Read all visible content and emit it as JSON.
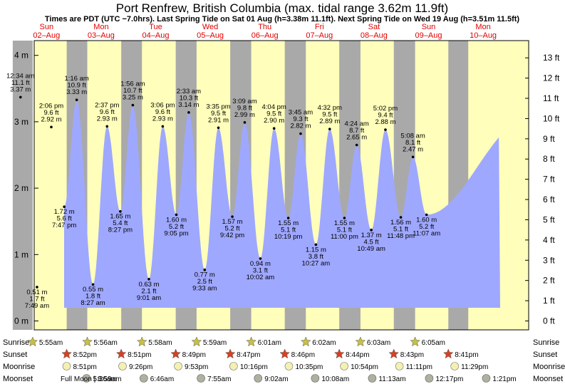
{
  "chart_data": {
    "type": "area",
    "title": "Port Renfrew, British Columbia (max. tidal range 3.62m 11.9ft)",
    "subtitle": "Times are PDT (UTC −7.0hrs). Last Spring Tide on Sat 01 Aug (h=3.38m 11.1ft). Next Spring Tide on Wed 19 Aug (h=3.51m 11.5ft)",
    "days": [
      {
        "name": "Sun",
        "date": "02–Aug"
      },
      {
        "name": "Mon",
        "date": "03–Aug"
      },
      {
        "name": "Tue",
        "date": "04–Aug"
      },
      {
        "name": "Wed",
        "date": "05–Aug"
      },
      {
        "name": "Thu",
        "date": "06–Aug"
      },
      {
        "name": "Fri",
        "date": "07–Aug"
      },
      {
        "name": "Sat",
        "date": "08–Aug"
      },
      {
        "name": "Sun",
        "date": "09–Aug"
      },
      {
        "name": "Mon",
        "date": "10–Aug"
      }
    ],
    "ylim_m": [
      0,
      4.35
    ],
    "y_ticks_m": [
      "0 m",
      "1 m",
      "2 m",
      "3 m",
      "4 m"
    ],
    "y_ticks_ft": [
      "0 ft",
      "1 ft",
      "2 ft",
      "3 ft",
      "4 ft",
      "5 ft",
      "6 ft",
      "7 ft",
      "8 ft",
      "9 ft",
      "10 ft",
      "11 ft",
      "12 ft",
      "13 ft"
    ],
    "start_level_m": 2.15,
    "end_level_m": 2.85,
    "tides": [
      {
        "day": 0,
        "time": "12:34 am",
        "ft": "11.1 ft",
        "m": 3.37,
        "label_m": "3.37 m",
        "type": "high"
      },
      {
        "day": 0,
        "time": "7:49 am",
        "ft": "1.7 ft",
        "m": 0.51,
        "label_m": "0.51 m",
        "type": "low"
      },
      {
        "day": 0,
        "time": "2:06 pm",
        "ft": "9.6 ft",
        "m": 2.92,
        "label_m": "2.92 m",
        "type": "high"
      },
      {
        "day": 0,
        "time": "7:47 pm",
        "ft": "5.6 ft",
        "m": 1.72,
        "label_m": "1.72 m",
        "type": "low"
      },
      {
        "day": 1,
        "time": "1:16 am",
        "ft": "10.9 ft",
        "m": 3.33,
        "label_m": "3.33 m",
        "type": "high"
      },
      {
        "day": 1,
        "time": "8:27 am",
        "ft": "1.8 ft",
        "m": 0.55,
        "label_m": "0.55 m",
        "type": "low"
      },
      {
        "day": 1,
        "time": "2:37 pm",
        "ft": "9.6 ft",
        "m": 2.93,
        "label_m": "2.93 m",
        "type": "high"
      },
      {
        "day": 1,
        "time": "8:27 pm",
        "ft": "5.4 ft",
        "m": 1.65,
        "label_m": "1.65 m",
        "type": "low"
      },
      {
        "day": 2,
        "time": "1:56 am",
        "ft": "10.7 ft",
        "m": 3.25,
        "label_m": "3.25 m",
        "type": "high"
      },
      {
        "day": 2,
        "time": "9:01 am",
        "ft": "2.1 ft",
        "m": 0.63,
        "label_m": "0.63 m",
        "type": "low"
      },
      {
        "day": 2,
        "time": "3:06 pm",
        "ft": "9.6 ft",
        "m": 2.93,
        "label_m": "2.93 m",
        "type": "high"
      },
      {
        "day": 2,
        "time": "9:05 pm",
        "ft": "5.2 ft",
        "m": 1.6,
        "label_m": "1.60 m",
        "type": "low"
      },
      {
        "day": 3,
        "time": "2:33 am",
        "ft": "10.3 ft",
        "m": 3.14,
        "label_m": "3.14 m",
        "type": "high"
      },
      {
        "day": 3,
        "time": "9:33 am",
        "ft": "2.5 ft",
        "m": 0.77,
        "label_m": "0.77 m",
        "type": "low"
      },
      {
        "day": 3,
        "time": "3:35 pm",
        "ft": "9.5 ft",
        "m": 2.91,
        "label_m": "2.91 m",
        "type": "high"
      },
      {
        "day": 3,
        "time": "9:42 pm",
        "ft": "5.2 ft",
        "m": 1.57,
        "label_m": "1.57 m",
        "type": "low"
      },
      {
        "day": 4,
        "time": "3:09 am",
        "ft": "9.8 ft",
        "m": 2.99,
        "label_m": "2.99 m",
        "type": "high"
      },
      {
        "day": 4,
        "time": "10:02 am",
        "ft": "3.1 ft",
        "m": 0.94,
        "label_m": "0.94 m",
        "type": "low"
      },
      {
        "day": 4,
        "time": "4:04 pm",
        "ft": "9.5 ft",
        "m": 2.9,
        "label_m": "2.90 m",
        "type": "high"
      },
      {
        "day": 4,
        "time": "10:19 pm",
        "ft": "5.1 ft",
        "m": 1.55,
        "label_m": "1.55 m",
        "type": "low"
      },
      {
        "day": 5,
        "time": "3:45 am",
        "ft": "9.3 ft",
        "m": 2.82,
        "label_m": "2.82 m",
        "type": "high"
      },
      {
        "day": 5,
        "time": "10:27 am",
        "ft": "3.8 ft",
        "m": 1.15,
        "label_m": "1.15 m",
        "type": "low"
      },
      {
        "day": 5,
        "time": "4:32 pm",
        "ft": "9.5 ft",
        "m": 2.89,
        "label_m": "2.89 m",
        "type": "high"
      },
      {
        "day": 5,
        "time": "11:00 pm",
        "ft": "5.1 ft",
        "m": 1.55,
        "label_m": "1.55 m",
        "type": "low"
      },
      {
        "day": 6,
        "time": "4:24 am",
        "ft": "8.7 ft",
        "m": 2.65,
        "label_m": "2.65 m",
        "type": "high"
      },
      {
        "day": 6,
        "time": "10:49 am",
        "ft": "4.5 ft",
        "m": 1.37,
        "label_m": "1.37 m",
        "type": "low"
      },
      {
        "day": 6,
        "time": "5:02 pm",
        "ft": "9.4 ft",
        "m": 2.88,
        "label_m": "2.88 m",
        "type": "high"
      },
      {
        "day": 6,
        "time": "11:48 pm",
        "ft": "5.1 ft",
        "m": 1.56,
        "label_m": "1.56 m",
        "type": "low"
      },
      {
        "day": 7,
        "time": "5:08 am",
        "ft": "8.1 ft",
        "m": 2.47,
        "label_m": "2.47 m",
        "type": "high"
      },
      {
        "day": 7,
        "time": "11:07 am",
        "ft": "5.2 ft",
        "m": 1.6,
        "label_m": "1.60 m",
        "type": "low"
      }
    ],
    "sun_moon": {
      "row_labels": [
        "Sunrise",
        "Sunset",
        "Moonrise",
        "Moonset"
      ],
      "sunrise": [
        {
          "day": 0,
          "time": "5:55am"
        },
        {
          "day": 1,
          "time": "5:56am"
        },
        {
          "day": 2,
          "time": "5:58am"
        },
        {
          "day": 3,
          "time": "5:59am"
        },
        {
          "day": 4,
          "time": "6:01am"
        },
        {
          "day": 5,
          "time": "6:02am"
        },
        {
          "day": 6,
          "time": "6:03am"
        },
        {
          "day": 7,
          "time": "6:05am"
        }
      ],
      "sunset": [
        {
          "day": 0,
          "time": "8:52pm"
        },
        {
          "day": 1,
          "time": "8:51pm"
        },
        {
          "day": 2,
          "time": "8:49pm"
        },
        {
          "day": 3,
          "time": "8:47pm"
        },
        {
          "day": 4,
          "time": "8:46pm"
        },
        {
          "day": 5,
          "time": "8:44pm"
        },
        {
          "day": 6,
          "time": "8:43pm"
        },
        {
          "day": 7,
          "time": "8:41pm"
        }
      ],
      "moonrise": [
        {
          "day": 0,
          "time": "8:51pm"
        },
        {
          "day": 1,
          "time": "9:26pm"
        },
        {
          "day": 2,
          "time": "9:53pm"
        },
        {
          "day": 3,
          "time": "10:16pm"
        },
        {
          "day": 4,
          "time": "10:35pm"
        },
        {
          "day": 5,
          "time": "10:54pm"
        },
        {
          "day": 6,
          "time": "11:11pm"
        },
        {
          "day": 7,
          "time": "11:29pm"
        }
      ],
      "moonset": [
        {
          "day": 1,
          "time": "5:36am"
        },
        {
          "day": 2,
          "time": "6:46am"
        },
        {
          "day": 3,
          "time": "7:55am"
        },
        {
          "day": 4,
          "time": "9:02am"
        },
        {
          "day": 5,
          "time": "10:08am"
        },
        {
          "day": 6,
          "time": "11:13am"
        },
        {
          "day": 7,
          "time": "12:17pm"
        },
        {
          "day": 8,
          "time": "1:21pm"
        }
      ],
      "phase_note": "Full Moon | 8:59am"
    },
    "colors": {
      "water": "#9fa8ff",
      "day_bg": "#ffffbb",
      "night_bg": "#a9a9a9",
      "day_text": "#e00000",
      "sun_star": "#c8c040",
      "sunset_star": "#d84020",
      "moon_circle": "#f4f0b0",
      "moonset_circle": "#b0b0a0"
    }
  }
}
